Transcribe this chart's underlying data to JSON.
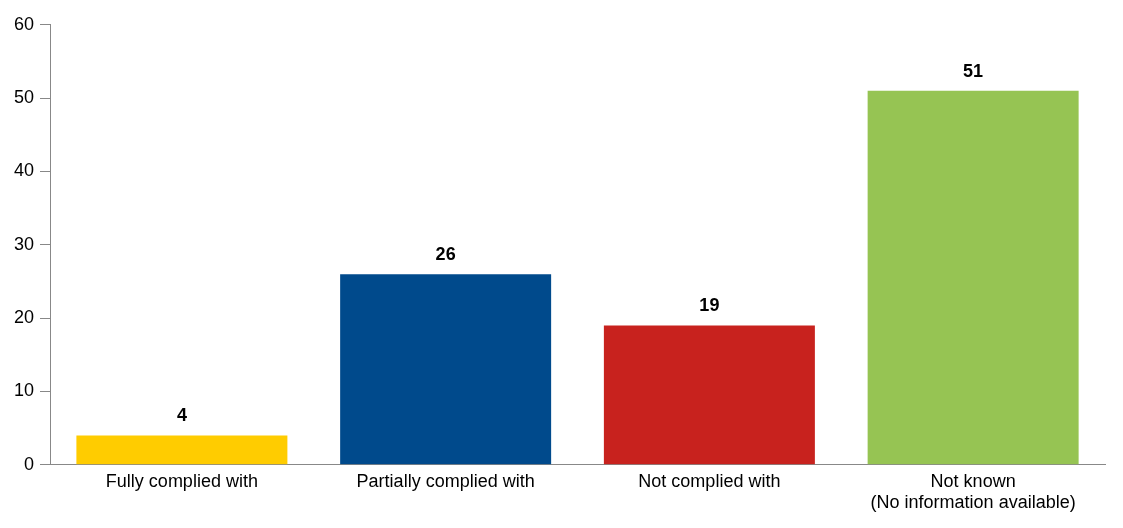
{
  "chart_data": {
    "type": "bar",
    "categories": [
      "Fully complied with",
      "Partially complied with",
      "Not complied with",
      "Not known\n(No information available)"
    ],
    "values": [
      4,
      26,
      19,
      51
    ],
    "colors": [
      "#ffcc00",
      "#004a8c",
      "#c8221e",
      "#96c453"
    ],
    "ylim": [
      0,
      60
    ],
    "yticks": [
      0,
      10,
      20,
      30,
      40,
      50,
      60
    ],
    "grid": false,
    "data_labels": true,
    "legend": false
  }
}
